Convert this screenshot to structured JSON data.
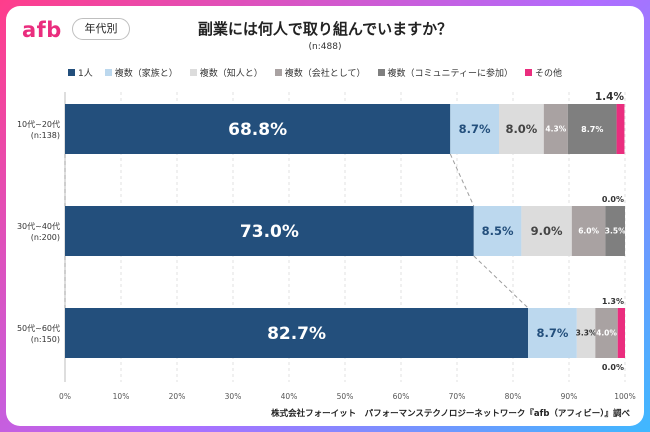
{
  "header": {
    "logo": "afb",
    "badge": "年代別",
    "title": "副業には何人で取り組んでいますか？",
    "subtitle": "(n:488)"
  },
  "footer": "株式会社フォーイット　パフォーマンステクノロジーネットワーク『afb（アフィビー）』調べ",
  "chart_data": {
    "type": "bar",
    "orientation": "horizontal",
    "stacked": true,
    "categories": [
      "10代~20代\n(n:138)",
      "30代~40代\n(n:200)",
      "50代~60代\n(n:150)"
    ],
    "series": [
      {
        "name": "1人",
        "values": [
          68.8,
          73.0,
          82.7
        ],
        "labels": [
          "68.8%",
          "73.0%",
          "82.7%"
        ],
        "color": "#234f7c"
      },
      {
        "name": "複数（家族と）",
        "values": [
          8.7,
          8.5,
          8.7
        ],
        "labels": [
          "8.7%",
          "8.5%",
          "8.7%"
        ],
        "color": "#bcd8ee"
      },
      {
        "name": "複数（知人と）",
        "values": [
          8.0,
          9.0,
          3.3
        ],
        "labels": [
          "8.0%",
          "9.0%",
          "3.3%"
        ],
        "color": "#dcdcdc"
      },
      {
        "name": "複数（会社として）",
        "values": [
          4.3,
          6.0,
          4.0
        ],
        "labels": [
          "4.3%",
          "6.0%",
          "4.0%"
        ],
        "color": "#a9a2a2"
      },
      {
        "name": "複数（コミュニティーに参加）",
        "values": [
          8.7,
          3.5,
          0.0
        ],
        "labels": [
          "8.7%",
          "3.5%",
          "0.0%"
        ],
        "color": "#7f7f7f"
      },
      {
        "name": "その他",
        "values": [
          1.4,
          0.0,
          1.3
        ],
        "labels": [
          "1.4%",
          "0.0%",
          "1.3%"
        ],
        "color": "#ea2d7e"
      }
    ],
    "xlim": [
      0,
      100
    ],
    "xticks": [
      "0%",
      "10%",
      "20%",
      "30%",
      "40%",
      "50%",
      "60%",
      "70%",
      "80%",
      "90%",
      "100%"
    ],
    "grid": true,
    "legend": "top"
  }
}
